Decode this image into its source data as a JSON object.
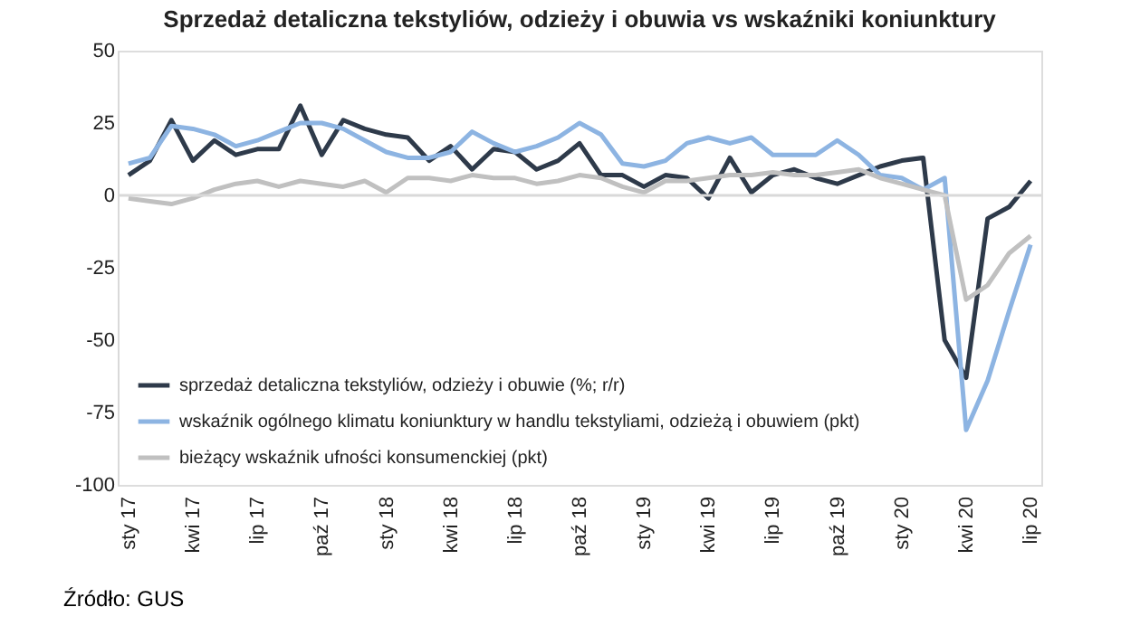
{
  "chart_data": {
    "type": "line",
    "title": "Sprzedaż detaliczna tekstyliów, odzieży i obuwia vs wskaźniki koniunktury",
    "categories": [
      "sty 17",
      null,
      null,
      "kwi 17",
      null,
      null,
      "lip 17",
      null,
      null,
      "paź 17",
      null,
      null,
      "sty 18",
      null,
      null,
      "kwi 18",
      null,
      null,
      "lip 18",
      null,
      null,
      "paź 18",
      null,
      null,
      "sty 19",
      null,
      null,
      "kwi 19",
      null,
      null,
      "lip 19",
      null,
      null,
      "paź 19",
      null,
      null,
      "sty 20",
      null,
      null,
      "kwi 20",
      null,
      null,
      "lip 20"
    ],
    "series": [
      {
        "name": "sprzedaż detaliczna tekstyliów, odzieży i obuwie (%; r/r)",
        "color": "#2e3a4a",
        "values": [
          7,
          12,
          26,
          12,
          19,
          14,
          16,
          16,
          31,
          14,
          26,
          23,
          21,
          20,
          12,
          17,
          9,
          16,
          15,
          9,
          12,
          18,
          7,
          7,
          3,
          7,
          6,
          -1,
          13,
          1,
          7,
          9,
          6,
          4,
          7,
          10,
          12,
          13,
          -50,
          -63,
          -8,
          -4,
          5
        ]
      },
      {
        "name": "wskaźnik ogólnego klimatu koniunktury w handlu tekstyliami, odzieżą i obuwiem (pkt)",
        "color": "#8db4e2",
        "values": [
          11,
          13,
          24,
          23,
          21,
          17,
          19,
          22,
          25,
          25,
          23,
          19,
          15,
          13,
          13,
          15,
          22,
          18,
          15,
          17,
          20,
          25,
          21,
          11,
          10,
          12,
          18,
          20,
          18,
          20,
          14,
          14,
          14,
          19,
          14,
          7,
          6,
          2,
          6,
          -81,
          -64,
          -40,
          -17
        ]
      },
      {
        "name": "bieżący wskaźnik ufności konsumenckiej (pkt)",
        "color": "#c0c0c0",
        "values": [
          -1,
          -2,
          -3,
          -1,
          2,
          4,
          5,
          3,
          5,
          4,
          3,
          5,
          1,
          6,
          6,
          5,
          7,
          6,
          6,
          4,
          5,
          7,
          6,
          3,
          1,
          5,
          5,
          6,
          7,
          7,
          8,
          7,
          7,
          8,
          9,
          6,
          4,
          2,
          0,
          -36,
          -31,
          -20,
          -14
        ]
      }
    ],
    "ylim": [
      -100,
      50
    ],
    "yticks": [
      -100,
      -75,
      -50,
      -25,
      0,
      25,
      50
    ],
    "ref_lines": [
      {
        "axis": "y",
        "value": 0,
        "color": "#d9d9d9"
      }
    ],
    "grid": false,
    "legend": "bottom left",
    "marker": "none",
    "line_style": "solid",
    "annotations": [
      "Źródło: GUS"
    ]
  }
}
